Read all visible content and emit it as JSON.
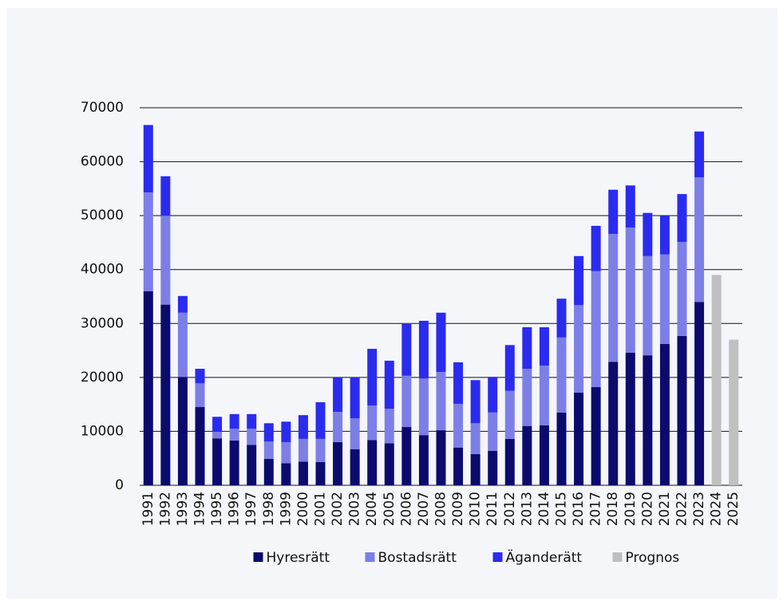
{
  "chart_data": {
    "type": "stacked_bar",
    "categories": [
      "1991",
      "1992",
      "1993",
      "1994",
      "1995",
      "1996",
      "1997",
      "1998",
      "1999",
      "2000",
      "2001",
      "2002",
      "2003",
      "2004",
      "2005",
      "2006",
      "2007",
      "2008",
      "2009",
      "2010",
      "2011",
      "2012",
      "2013",
      "2014",
      "2015",
      "2016",
      "2017",
      "2018",
      "2019",
      "2020",
      "2021",
      "2022",
      "2023",
      "2024",
      "2025"
    ],
    "series": [
      {
        "name": "Hyresrätt",
        "color": "#0b0b6e",
        "values": [
          36000,
          33500,
          20100,
          14500,
          8700,
          8300,
          7500,
          4900,
          4100,
          4400,
          4300,
          8000,
          6700,
          8400,
          7800,
          10800,
          9300,
          10200,
          7000,
          5800,
          6400,
          8600,
          11000,
          11100,
          13500,
          17200,
          18200,
          22900,
          24600,
          24100,
          26200,
          27700,
          34000,
          null,
          null
        ]
      },
      {
        "name": "Bostadsrätt",
        "color": "#7d7fe8",
        "values": [
          18300,
          16500,
          11900,
          4400,
          1200,
          2200,
          3000,
          3200,
          3900,
          4200,
          4300,
          5600,
          5700,
          6400,
          6400,
          9500,
          10500,
          10800,
          8100,
          5700,
          7100,
          8900,
          10600,
          11100,
          13900,
          16200,
          21500,
          23700,
          23200,
          18400,
          16600,
          17400,
          23100,
          null,
          null
        ]
      },
      {
        "name": "Äganderätt",
        "color": "#2b2bf0",
        "values": [
          12500,
          7300,
          3100,
          2700,
          2800,
          2700,
          2700,
          3400,
          3800,
          4400,
          6800,
          6400,
          7600,
          10500,
          8900,
          9600,
          10700,
          11000,
          7700,
          8000,
          6600,
          8500,
          7700,
          7100,
          7200,
          9100,
          8400,
          8200,
          7800,
          8000,
          7200,
          8900,
          8500,
          null,
          null
        ]
      },
      {
        "name": "Prognos",
        "color": "#c0c0c0",
        "values": [
          null,
          null,
          null,
          null,
          null,
          null,
          null,
          null,
          null,
          null,
          null,
          null,
          null,
          null,
          null,
          null,
          null,
          null,
          null,
          null,
          null,
          null,
          null,
          null,
          null,
          null,
          null,
          null,
          null,
          null,
          null,
          null,
          null,
          39000,
          27000
        ]
      }
    ],
    "ylim": [
      0,
      70000
    ],
    "yticks": [
      0,
      10000,
      20000,
      30000,
      40000,
      50000,
      60000,
      70000
    ],
    "grid": true,
    "legend": "bottom"
  }
}
